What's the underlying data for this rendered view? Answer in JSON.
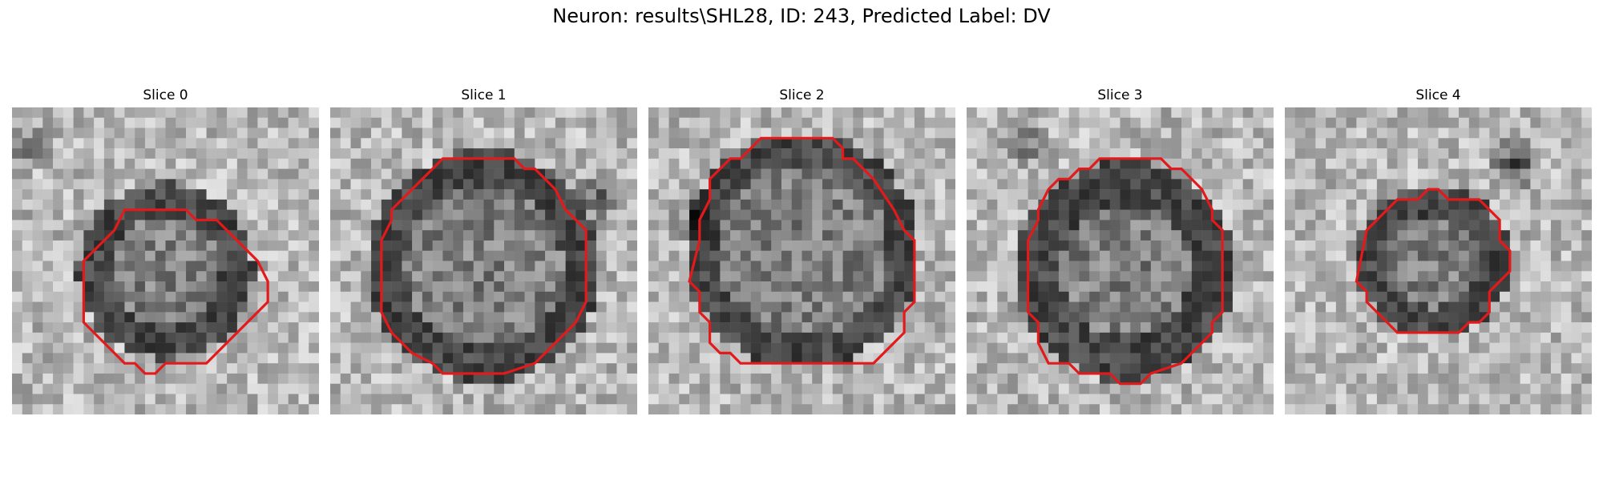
{
  "figure": {
    "title": "Neuron: results\\SHL28, ID: 243, Predicted Label: DV",
    "contour_color": "#e31a1c"
  },
  "panels": [
    {
      "title": "Slice 0"
    },
    {
      "title": "Slice 1"
    },
    {
      "title": "Slice 2"
    },
    {
      "title": "Slice 3"
    },
    {
      "title": "Slice 4"
    }
  ]
}
